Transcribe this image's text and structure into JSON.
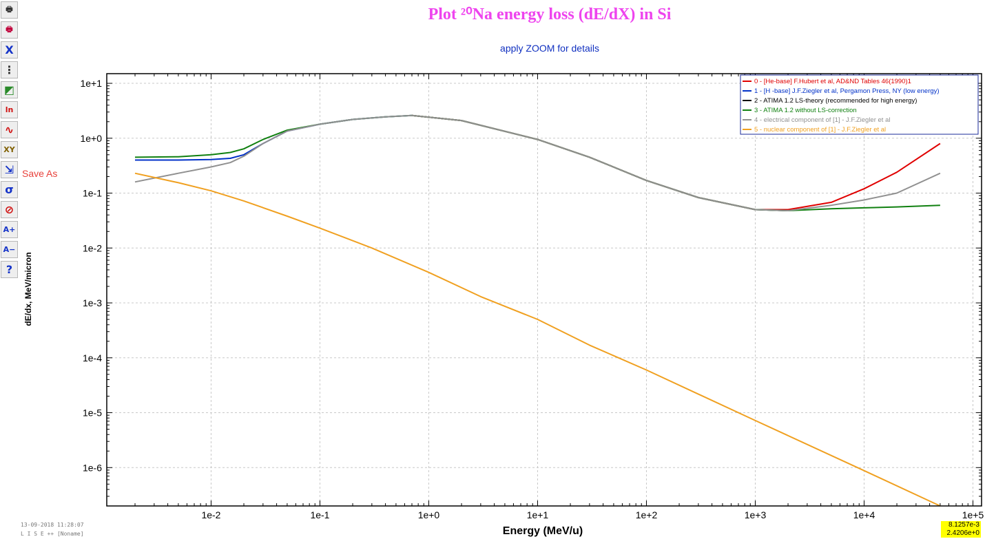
{
  "toolbar": {
    "buttons": [
      {
        "name": "print-icon",
        "glyph": "🖶",
        "color": "#333333"
      },
      {
        "name": "print-color-icon",
        "glyph": "🖶",
        "color": "#c0003a"
      },
      {
        "name": "clear-x-icon",
        "glyph": "X",
        "color": "#1533c8"
      },
      {
        "name": "grid-scale-icon",
        "glyph": "⋮",
        "color": "#333333"
      },
      {
        "name": "color-palette-icon",
        "glyph": "◩",
        "color": "#2a8a2a"
      },
      {
        "name": "ln-plot-icon",
        "glyph": "ln",
        "color": "#d01010"
      },
      {
        "name": "curve-fit-icon",
        "glyph": "∿",
        "color": "#d01010"
      },
      {
        "name": "xy-data-icon",
        "glyph": "XY",
        "color": "#806000"
      },
      {
        "name": "save-as-icon",
        "glyph": "⇲",
        "color": "#1533c8"
      },
      {
        "name": "statistics-icon",
        "glyph": "σ",
        "color": "#1533c8"
      },
      {
        "name": "zoom-off-icon",
        "glyph": "⊘",
        "color": "#d01010"
      },
      {
        "name": "font-increase-icon",
        "glyph": "A+",
        "color": "#1533c8"
      },
      {
        "name": "font-decrease-icon",
        "glyph": "A−",
        "color": "#1533c8"
      },
      {
        "name": "help-icon",
        "glyph": "?",
        "color": "#1533c8"
      }
    ],
    "save_as_label": "Save As"
  },
  "status": {
    "date": "13-09-2018  11:28:07",
    "program": "L I S E ++   [Noname]"
  },
  "coords": {
    "x": "8.1257e-3",
    "y": "2.4206e+0"
  },
  "chart_data": {
    "type": "line",
    "title": "Plot ²⁰Na energy loss (dE/dX) in Si",
    "subtitle": "apply ZOOM for details",
    "xlabel": "Energy (MeV/u)",
    "ylabel": "dE/dx, MeV/micron",
    "x_scale": "log",
    "y_scale": "log",
    "xlim": [
      0.0011,
      120000
    ],
    "ylim": [
      2e-07,
      15
    ],
    "x_ticks": [
      "1e-2",
      "1e-1",
      "1e+0",
      "1e+1",
      "1e+2",
      "1e+3",
      "1e+4",
      "1e+5"
    ],
    "y_ticks": [
      "1e-6",
      "1e-5",
      "1e-4",
      "1e-3",
      "1e-2",
      "1e-1",
      "1e+0",
      "1e+1"
    ],
    "grid": true,
    "legend_position": "top-right",
    "series": [
      {
        "name": "0 - [He-base] F.Hubert et al, AD&ND Tables 46(1990)1",
        "color": "#e00000",
        "x": [
          0.7,
          2,
          10,
          30,
          100,
          300,
          1000,
          2000,
          5000,
          10000,
          20000,
          50000
        ],
        "y": [
          2.6,
          2.1,
          0.95,
          0.45,
          0.17,
          0.083,
          0.05,
          0.05,
          0.068,
          0.12,
          0.24,
          0.8
        ]
      },
      {
        "name": "1 - [H -base] J.F.Ziegler et al, Pergamon Press, NY (low energy)",
        "color": "#0030c8",
        "x": [
          0.002,
          0.005,
          0.01,
          0.015,
          0.02,
          0.03,
          0.05,
          0.1,
          0.2,
          0.4,
          0.7
        ],
        "y": [
          0.4,
          0.4,
          0.41,
          0.43,
          0.5,
          0.8,
          1.35,
          1.8,
          2.2,
          2.45,
          2.6
        ]
      },
      {
        "name": "2 - ATIMA 1.2  LS-theory (recommended for high energy)",
        "color": "#000000",
        "x": [
          0.7,
          2,
          10,
          30,
          100,
          300,
          1000,
          2000
        ],
        "y": [
          2.6,
          2.1,
          0.95,
          0.45,
          0.17,
          0.083,
          0.05,
          0.048
        ]
      },
      {
        "name": "3 - ATIMA 1.2  without LS-correction",
        "color": "#108010",
        "x": [
          0.002,
          0.005,
          0.01,
          0.015,
          0.02,
          0.03,
          0.05,
          0.1,
          0.2,
          0.4,
          0.7,
          2,
          10,
          30,
          100,
          300,
          1000,
          2000,
          5000,
          10000,
          20000,
          50000
        ],
        "y": [
          0.45,
          0.46,
          0.5,
          0.55,
          0.64,
          0.95,
          1.4,
          1.8,
          2.2,
          2.45,
          2.6,
          2.1,
          0.95,
          0.45,
          0.17,
          0.083,
          0.05,
          0.048,
          0.052,
          0.054,
          0.056,
          0.06
        ]
      },
      {
        "name": "4 - electrical component of [1] - J.F.Ziegler et al",
        "color": "#909090",
        "x": [
          0.002,
          0.005,
          0.01,
          0.015,
          0.02,
          0.03,
          0.05,
          0.1,
          0.2,
          0.4,
          0.7,
          2,
          10,
          30,
          100,
          300,
          1000,
          2000,
          5000,
          10000,
          20000,
          50000
        ],
        "y": [
          0.16,
          0.23,
          0.3,
          0.36,
          0.47,
          0.8,
          1.35,
          1.8,
          2.2,
          2.45,
          2.6,
          2.1,
          0.95,
          0.45,
          0.17,
          0.083,
          0.05,
          0.048,
          0.06,
          0.075,
          0.1,
          0.23
        ]
      },
      {
        "name": "5 - nuclear component of [1] - J.F.Ziegler et al",
        "color": "#f0a020",
        "x": [
          0.002,
          0.005,
          0.01,
          0.02,
          0.05,
          0.1,
          0.3,
          1,
          3,
          10,
          30,
          100,
          1000,
          10000,
          50000
        ],
        "y": [
          0.23,
          0.155,
          0.11,
          0.072,
          0.038,
          0.023,
          0.01,
          0.0036,
          0.0013,
          0.0005,
          0.00017,
          6e-05,
          7.2e-06,
          8.8e-07,
          2e-07
        ]
      }
    ]
  }
}
